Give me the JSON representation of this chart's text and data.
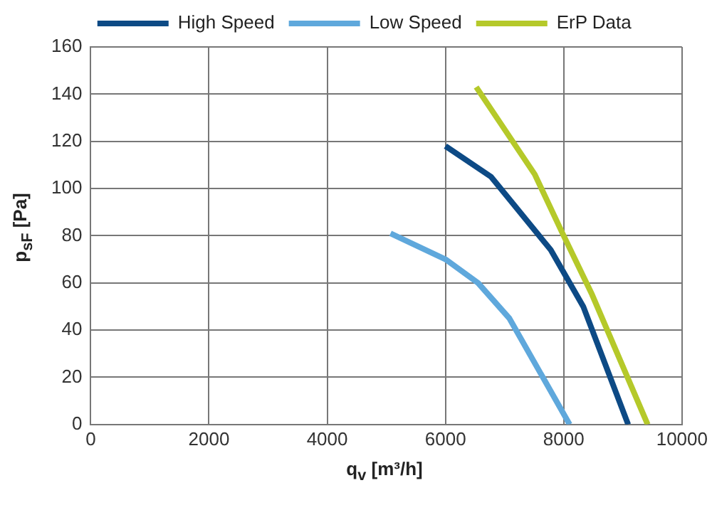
{
  "chart_data": {
    "type": "line",
    "xlabel": "q$_{v}$ [m³/h]",
    "ylabel": "p$_{sF}$ [Pa]",
    "xlim": [
      0,
      10000
    ],
    "xticks": [
      0,
      2000,
      4000,
      6000,
      8000,
      10000
    ],
    "ylim": [
      0,
      160
    ],
    "yticks": [
      0,
      20,
      40,
      60,
      80,
      100,
      120,
      140,
      160
    ],
    "grid": true,
    "legend": "top",
    "marker": "none",
    "line_style": "solid",
    "series": [
      {
        "name": "High Speed",
        "color": "#0d4a85",
        "x": [
          6000,
          6770,
          7780,
          8330,
          9090
        ],
        "values": [
          118,
          105,
          74,
          50,
          0
        ]
      },
      {
        "name": "Low Speed",
        "color": "#5fa8dc",
        "x": [
          5070,
          6000,
          6550,
          7080,
          8100
        ],
        "values": [
          81,
          70,
          60,
          45,
          0
        ]
      },
      {
        "name": "ErP Data",
        "color": "#b5c92a",
        "x": [
          6520,
          7510,
          7980,
          8480,
          9420
        ],
        "values": [
          143,
          106,
          81,
          55,
          0
        ]
      }
    ]
  }
}
